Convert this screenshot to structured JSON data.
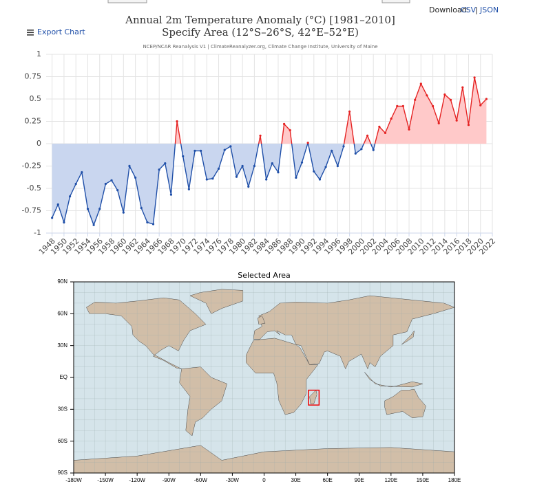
{
  "header": {
    "download_label": "Download:",
    "csv": "CSV",
    "separator": "|",
    "json": "JSON"
  },
  "export_label": "Export Chart",
  "chart_data": {
    "type": "line",
    "title": "Annual 2m Temperature Anomaly (°C) [1981–2010]",
    "subtitle": "Specify Area (12°S–26°S, 42°E–52°E)",
    "source": "NCEP/NCAR Reanalysis V1 | ClimateReanalyzer.org, Climate Change Institute, University of Maine",
    "x": [
      1948,
      1949,
      1950,
      1951,
      1952,
      1953,
      1954,
      1955,
      1956,
      1957,
      1958,
      1959,
      1960,
      1961,
      1962,
      1963,
      1964,
      1965,
      1966,
      1967,
      1968,
      1969,
      1970,
      1971,
      1972,
      1973,
      1974,
      1975,
      1976,
      1977,
      1978,
      1979,
      1980,
      1981,
      1982,
      1983,
      1984,
      1985,
      1986,
      1987,
      1988,
      1989,
      1990,
      1991,
      1992,
      1993,
      1994,
      1995,
      1996,
      1997,
      1998,
      1999,
      2000,
      2001,
      2002,
      2003,
      2004,
      2005,
      2006,
      2007,
      2008,
      2009,
      2010,
      2011,
      2012,
      2013,
      2014,
      2015,
      2016,
      2017,
      2018,
      2019,
      2020,
      2021
    ],
    "values": [
      -0.83,
      -0.68,
      -0.88,
      -0.59,
      -0.45,
      -0.32,
      -0.73,
      -0.91,
      -0.73,
      -0.45,
      -0.41,
      -0.52,
      -0.77,
      -0.25,
      -0.38,
      -0.72,
      -0.88,
      -0.9,
      -0.29,
      -0.22,
      -0.57,
      0.25,
      -0.14,
      -0.51,
      -0.08,
      -0.08,
      -0.4,
      -0.39,
      -0.28,
      -0.07,
      -0.03,
      -0.37,
      -0.25,
      -0.48,
      -0.25,
      0.09,
      -0.4,
      -0.22,
      -0.32,
      0.22,
      0.15,
      -0.38,
      -0.21,
      0.01,
      -0.31,
      -0.4,
      -0.26,
      -0.08,
      -0.25,
      -0.03,
      0.36,
      -0.11,
      -0.06,
      0.09,
      -0.07,
      0.19,
      0.12,
      0.28,
      0.42,
      0.42,
      0.16,
      0.49,
      0.67,
      0.54,
      0.42,
      0.23,
      0.55,
      0.49,
      0.26,
      0.63,
      0.21,
      0.74,
      0.43,
      0.5
    ],
    "color": "#e52222",
    "fill_color": "#ffc9c9",
    "negative_color": "#1f4fa8",
    "negative_fill_color": "#c9d6ef",
    "xlim": [
      1947,
      2022
    ],
    "xticks": [
      1948,
      1950,
      1952,
      1954,
      1956,
      1958,
      1960,
      1962,
      1964,
      1966,
      1968,
      1970,
      1972,
      1974,
      1976,
      1978,
      1980,
      1982,
      1984,
      1986,
      1988,
      1990,
      1992,
      1994,
      1996,
      1998,
      2000,
      2002,
      2004,
      2006,
      2008,
      2010,
      2012,
      2014,
      2016,
      2018,
      2020,
      2022
    ],
    "ylim": [
      -1,
      1
    ],
    "yticks": [
      -1,
      -0.75,
      -0.5,
      -0.25,
      0,
      0.25,
      0.5,
      0.75,
      1
    ],
    "grid": true
  },
  "map": {
    "title": "Selected Area",
    "lat_labels": [
      "90N",
      "60N",
      "30N",
      "EQ",
      "30S",
      "60S",
      "90S"
    ],
    "lon_labels": [
      "-180W",
      "-150W",
      "-120W",
      "-90W",
      "-60W",
      "-30W",
      "0",
      "30E",
      "60E",
      "90E",
      "120E",
      "150E",
      "180E"
    ]
  }
}
